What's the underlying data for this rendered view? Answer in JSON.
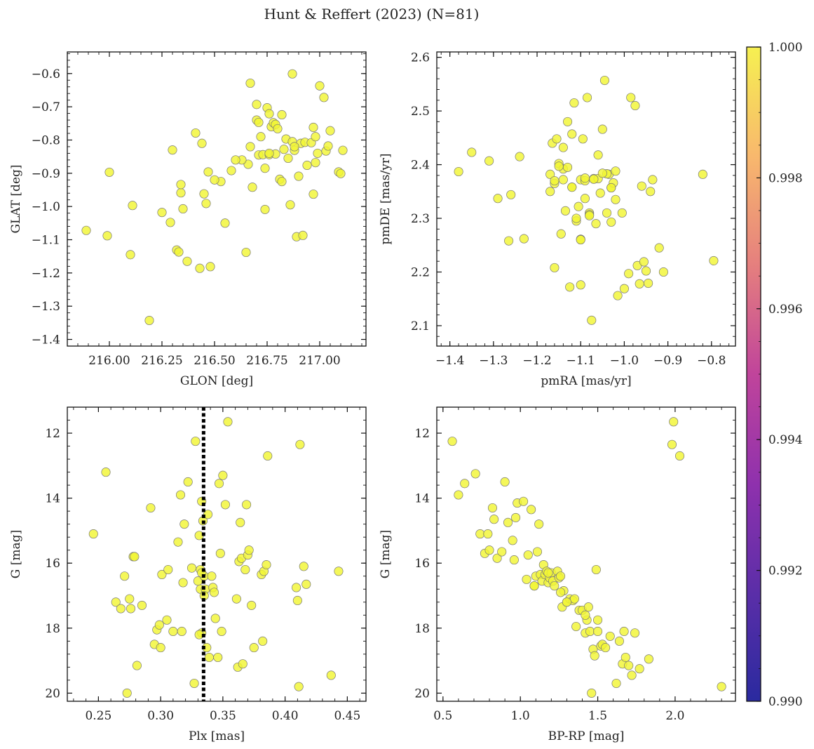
{
  "figure": {
    "title": "Hunt & Reffert (2023) (N=81)",
    "point_color": "#f1f535"
  },
  "colorbar": {
    "range": [
      0.99,
      1.0
    ],
    "ticks": [
      "0.990",
      "0.992",
      "0.994",
      "0.996",
      "0.998",
      "1.000"
    ],
    "colormap": "plasma",
    "stops": [
      "#2a2a9f",
      "#5b2ea8",
      "#8f31ad",
      "#c0449b",
      "#e57f7e",
      "#f8b86d",
      "#f6f051"
    ]
  },
  "chart_data": [
    {
      "id": "glon-glat",
      "type": "scatter",
      "xlabel": "GLON [deg]",
      "ylabel": "GLAT [deg]",
      "xlim": [
        215.8,
        217.22
      ],
      "ylim": [
        -1.42,
        -0.535
      ],
      "xticks": [
        216.0,
        216.25,
        216.5,
        216.75,
        217.0
      ],
      "xtick_labels": [
        "216.00",
        "216.25",
        "216.50",
        "216.75",
        "217.00"
      ],
      "yticks": [
        -1.4,
        -1.3,
        -1.2,
        -1.1,
        -1.0,
        -0.9,
        -0.8,
        -0.7,
        -0.6
      ],
      "ytick_labels": [
        "−1.4",
        "−1.3",
        "−1.2",
        "−1.1",
        "−1.0",
        "−0.9",
        "−0.8",
        "−0.7",
        "−0.6"
      ],
      "x": [
        215.89,
        215.99,
        216.0,
        216.1,
        216.11,
        216.19,
        216.25,
        216.29,
        216.32,
        216.33,
        216.34,
        216.34,
        216.35,
        216.37,
        216.41,
        216.43,
        216.45,
        216.46,
        216.47,
        216.48,
        216.53,
        216.55,
        216.58,
        216.65,
        216.66,
        216.67,
        216.68,
        216.7,
        216.7,
        216.71,
        216.71,
        216.72,
        216.73,
        216.74,
        216.74,
        216.75,
        216.76,
        216.76,
        216.77,
        216.78,
        216.79,
        216.79,
        216.8,
        216.81,
        216.82,
        216.82,
        216.83,
        216.84,
        216.85,
        216.86,
        216.87,
        216.87,
        216.88,
        216.89,
        216.9,
        216.91,
        216.92,
        216.93,
        216.94,
        216.96,
        216.97,
        216.97,
        216.98,
        216.99,
        217.0,
        217.02,
        217.03,
        217.04,
        217.05,
        217.09,
        217.1,
        217.11,
        216.3,
        216.44,
        216.76,
        216.88,
        216.63,
        216.5,
        216.98,
        216.67,
        216.6
      ],
      "y": [
        -1.072,
        -1.088,
        -0.897,
        -1.145,
        -0.997,
        -1.343,
        -1.018,
        -1.048,
        -1.131,
        -1.137,
        -0.959,
        -0.934,
        -1.007,
        -1.165,
        -0.779,
        -1.186,
        -0.962,
        -0.991,
        -0.896,
        -1.181,
        -0.925,
        -1.05,
        -0.892,
        -1.138,
        -0.873,
        -0.629,
        -0.942,
        -0.693,
        -0.74,
        -0.747,
        -0.845,
        -0.79,
        -0.844,
        -0.885,
        -1.009,
        -0.703,
        -0.721,
        -0.844,
        -0.76,
        -0.748,
        -0.753,
        -0.842,
        -0.766,
        -0.918,
        -0.925,
        -0.724,
        -0.828,
        -0.797,
        -0.855,
        -0.995,
        -0.601,
        -0.805,
        -0.831,
        -1.091,
        -0.909,
        -0.81,
        -1.087,
        -0.807,
        -0.876,
        -0.808,
        -0.762,
        -0.963,
        -0.868,
        -0.84,
        -0.637,
        -0.672,
        -0.833,
        -0.818,
        -0.772,
        -0.896,
        -0.901,
        -0.831,
        -0.83,
        -0.81,
        -0.84,
        -0.82,
        -0.86,
        -0.92,
        -0.79,
        -0.82,
        -0.86
      ]
    },
    {
      "id": "pmra-pmde",
      "type": "scatter",
      "xlabel": "pmRA [mas/yr]",
      "ylabel": "pmDE [mas/yr]",
      "xlim": [
        -1.43,
        -0.745
      ],
      "ylim": [
        2.062,
        2.61
      ],
      "xticks": [
        -1.4,
        -1.3,
        -1.2,
        -1.1,
        -1.0,
        -0.9,
        -0.8
      ],
      "xtick_labels": [
        "−1.4",
        "−1.3",
        "−1.2",
        "−1.1",
        "−1.0",
        "−0.9",
        "−0.8"
      ],
      "yticks": [
        2.1,
        2.2,
        2.3,
        2.4,
        2.5,
        2.6
      ],
      "ytick_labels": [
        "2.1",
        "2.2",
        "2.3",
        "2.4",
        "2.5",
        "2.6"
      ],
      "x": [
        -1.38,
        -1.35,
        -1.31,
        -1.29,
        -1.265,
        -1.26,
        -1.24,
        -1.23,
        -1.17,
        -1.165,
        -1.16,
        -1.16,
        -1.155,
        -1.15,
        -1.145,
        -1.14,
        -1.14,
        -1.135,
        -1.13,
        -1.125,
        -1.12,
        -1.115,
        -1.11,
        -1.105,
        -1.1,
        -1.1,
        -1.095,
        -1.09,
        -1.085,
        -1.08,
        -1.075,
        -1.07,
        -1.065,
        -1.06,
        -1.055,
        -1.05,
        -1.045,
        -1.04,
        -1.035,
        -1.03,
        -1.025,
        -1.02,
        -1.015,
        -1.005,
        -1.0,
        -0.99,
        -0.985,
        -0.975,
        -0.97,
        -0.965,
        -0.96,
        -0.955,
        -0.95,
        -0.945,
        -0.94,
        -0.935,
        -0.92,
        -0.91,
        -0.82,
        -0.795,
        -1.17,
        -1.12,
        -1.1,
        -1.06,
        -1.04,
        -1.03,
        -1.16,
        -1.13,
        -1.08,
        -1.11,
        -1.05,
        -1.15,
        -1.1,
        -1.09,
        -1.14,
        -1.07,
        -1.02,
        -1.09,
        -1.12,
        -1.03,
        -1.08
      ],
      "y": [
        2.387,
        2.423,
        2.407,
        2.337,
        2.258,
        2.344,
        2.415,
        2.262,
        2.382,
        2.44,
        2.365,
        2.208,
        2.448,
        2.402,
        2.271,
        2.432,
        2.392,
        2.314,
        2.48,
        2.172,
        2.457,
        2.515,
        2.295,
        2.322,
        2.176,
        2.261,
        2.448,
        2.337,
        2.525,
        2.31,
        2.11,
        2.374,
        2.29,
        2.418,
        2.347,
        2.466,
        2.557,
        2.31,
        2.382,
        2.357,
        2.366,
        2.335,
        2.156,
        2.31,
        2.169,
        2.197,
        2.525,
        2.51,
        2.212,
        2.178,
        2.36,
        2.219,
        2.202,
        2.179,
        2.35,
        2.372,
        2.245,
        2.2,
        2.382,
        2.221,
        2.35,
        2.358,
        2.372,
        2.374,
        2.383,
        2.293,
        2.37,
        2.395,
        2.307,
        2.3,
        2.384,
        2.397,
        2.26,
        2.37,
        2.372,
        2.373,
        2.388,
        2.375,
        2.358,
        2.357,
        2.305
      ]
    },
    {
      "id": "plx-g",
      "type": "scatter",
      "xlabel": "Plx [mas]",
      "ylabel": "G [mag]",
      "y_inverted": true,
      "xlim": [
        0.225,
        0.465
      ],
      "ylim": [
        11.2,
        20.25
      ],
      "xticks": [
        0.25,
        0.3,
        0.35,
        0.4,
        0.45
      ],
      "xtick_labels": [
        "0.25",
        "0.30",
        "0.35",
        "0.40",
        "0.45"
      ],
      "yticks": [
        12,
        14,
        16,
        18,
        20
      ],
      "ytick_labels": [
        "12",
        "14",
        "16",
        "18",
        "20"
      ],
      "vline": {
        "x": 0.3345,
        "style": "dotted",
        "color": "#000000"
      },
      "x": [
        0.246,
        0.256,
        0.264,
        0.268,
        0.271,
        0.273,
        0.275,
        0.276,
        0.278,
        0.279,
        0.281,
        0.285,
        0.292,
        0.295,
        0.297,
        0.299,
        0.3,
        0.301,
        0.305,
        0.306,
        0.31,
        0.314,
        0.316,
        0.317,
        0.318,
        0.319,
        0.322,
        0.325,
        0.327,
        0.328,
        0.33,
        0.331,
        0.332,
        0.333,
        0.334,
        0.335,
        0.336,
        0.337,
        0.338,
        0.341,
        0.342,
        0.343,
        0.344,
        0.346,
        0.347,
        0.348,
        0.349,
        0.35,
        0.352,
        0.354,
        0.361,
        0.362,
        0.363,
        0.364,
        0.365,
        0.366,
        0.368,
        0.369,
        0.37,
        0.371,
        0.373,
        0.375,
        0.381,
        0.382,
        0.383,
        0.385,
        0.386,
        0.409,
        0.41,
        0.411,
        0.412,
        0.415,
        0.417,
        0.437,
        0.443,
        0.333,
        0.332,
        0.335,
        0.331,
        0.339,
        0.333
      ],
      "y": [
        15.1,
        13.2,
        17.2,
        17.4,
        16.4,
        20.0,
        17.1,
        17.4,
        15.8,
        15.8,
        19.15,
        17.3,
        14.3,
        18.5,
        18.05,
        17.9,
        18.6,
        16.35,
        17.75,
        16.2,
        18.1,
        15.35,
        13.9,
        18.1,
        16.6,
        14.8,
        13.5,
        16.15,
        19.7,
        12.25,
        16.55,
        15.15,
        16.8,
        14.1,
        14.7,
        16.4,
        16.8,
        18.6,
        14.5,
        16.4,
        16.75,
        16.9,
        17.7,
        18.9,
        13.55,
        15.7,
        18.1,
        13.3,
        14.2,
        11.65,
        17.1,
        19.2,
        15.95,
        14.75,
        15.85,
        19.1,
        16.2,
        14.2,
        15.75,
        15.6,
        17.3,
        18.6,
        16.35,
        18.4,
        16.25,
        16.05,
        12.7,
        16.75,
        17.15,
        19.8,
        12.35,
        16.1,
        16.65,
        19.45,
        16.25,
        18.15,
        16.2,
        17.0,
        18.2,
        18.9,
        16.3
      ]
    },
    {
      "id": "bprp-g",
      "type": "scatter",
      "xlabel": "BP-RP [mag]",
      "ylabel": "G [mag]",
      "y_inverted": true,
      "xlim": [
        0.46,
        2.39
      ],
      "ylim": [
        11.2,
        20.25
      ],
      "xticks": [
        0.5,
        1.0,
        1.5,
        2.0
      ],
      "xtick_labels": [
        "0.5",
        "1.0",
        "1.5",
        "2.0"
      ],
      "yticks": [
        12,
        14,
        16,
        18,
        20
      ],
      "ytick_labels": [
        "12",
        "14",
        "16",
        "18",
        "20"
      ],
      "x": [
        0.56,
        0.6,
        0.64,
        0.71,
        0.74,
        0.77,
        0.79,
        0.8,
        0.82,
        0.83,
        0.85,
        0.88,
        0.9,
        0.92,
        0.95,
        0.96,
        0.97,
        0.98,
        1.02,
        1.04,
        1.05,
        1.07,
        1.09,
        1.1,
        1.11,
        1.12,
        1.13,
        1.14,
        1.15,
        1.16,
        1.17,
        1.18,
        1.19,
        1.2,
        1.21,
        1.22,
        1.24,
        1.25,
        1.26,
        1.27,
        1.28,
        1.3,
        1.32,
        1.34,
        1.35,
        1.36,
        1.38,
        1.4,
        1.42,
        1.43,
        1.44,
        1.45,
        1.46,
        1.47,
        1.48,
        1.49,
        1.5,
        1.52,
        1.53,
        1.55,
        1.58,
        1.62,
        1.64,
        1.66,
        1.67,
        1.68,
        1.7,
        1.72,
        1.74,
        1.77,
        1.83,
        1.98,
        1.99,
        2.03,
        2.3,
        1.3,
        1.42,
        1.5,
        1.18,
        1.09,
        1.26
      ],
      "y": [
        12.25,
        13.9,
        13.55,
        13.25,
        15.1,
        15.7,
        15.1,
        15.6,
        14.3,
        14.65,
        15.85,
        15.65,
        13.5,
        14.75,
        15.3,
        15.9,
        14.6,
        14.15,
        14.1,
        16.5,
        15.75,
        14.35,
        16.7,
        16.4,
        15.65,
        14.8,
        16.35,
        16.55,
        16.05,
        16.35,
        16.25,
        16.6,
        16.45,
        16.3,
        16.55,
        16.7,
        16.25,
        16.45,
        16.4,
        17.35,
        16.85,
        17.2,
        17.1,
        17.15,
        17.1,
        17.95,
        17.45,
        17.45,
        18.15,
        17.75,
        17.35,
        18.1,
        20.0,
        18.65,
        18.85,
        16.2,
        17.75,
        18.55,
        18.5,
        18.6,
        18.25,
        19.7,
        18.4,
        19.1,
        18.1,
        18.9,
        19.15,
        19.45,
        18.15,
        19.25,
        18.95,
        12.35,
        11.65,
        12.7,
        19.8,
        17.2,
        17.6,
        18.1,
        16.3,
        16.7,
        16.9
      ]
    }
  ]
}
